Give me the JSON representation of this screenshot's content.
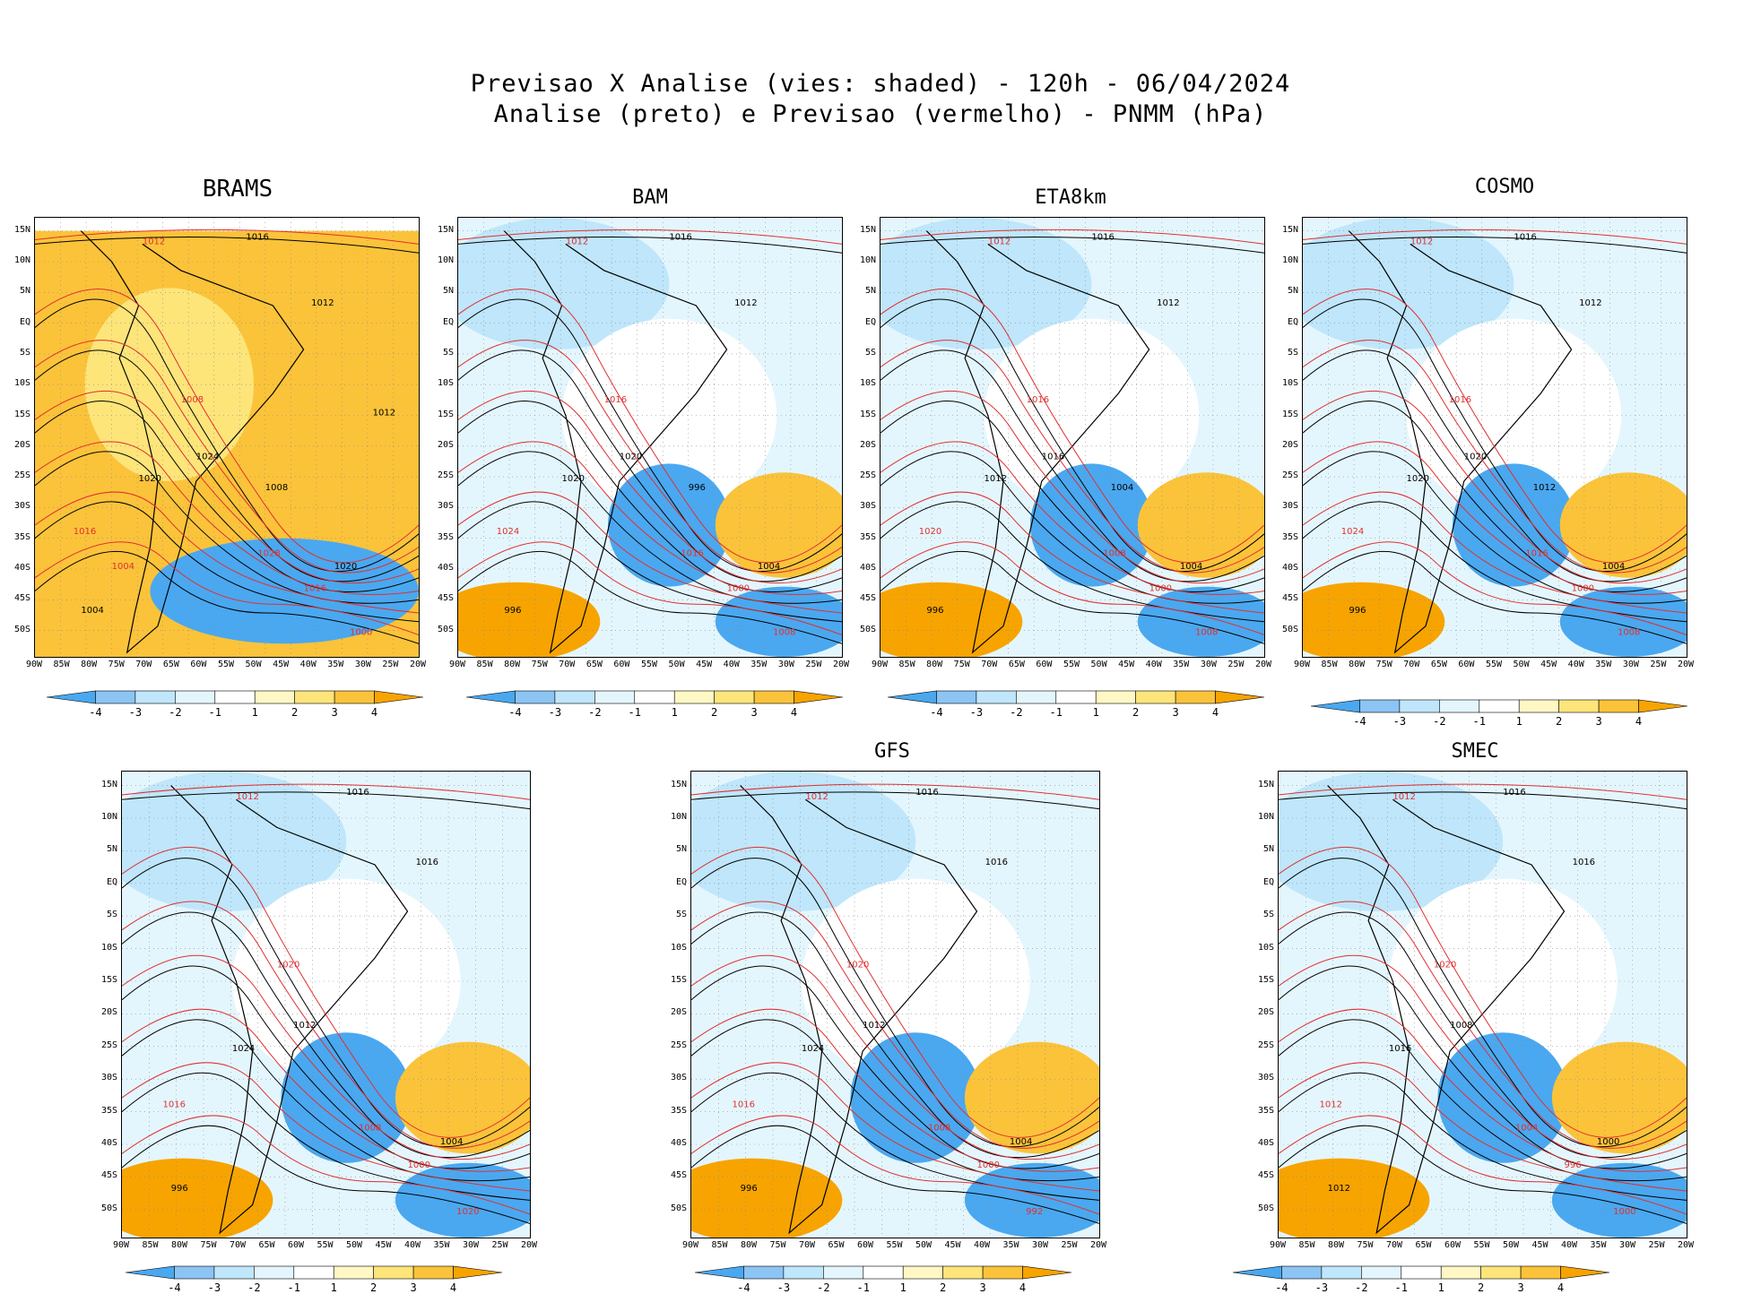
{
  "header": {
    "line1": "Previsao X Analise (vies: shaded) - 120h - 06/04/2024",
    "line2": "Analise (preto) e Previsao (vermelho) - PNMM (hPa)"
  },
  "lat_labels": [
    "15N",
    "10N",
    "5N",
    "EQ",
    "5S",
    "10S",
    "15S",
    "20S",
    "25S",
    "30S",
    "35S",
    "40S",
    "45S",
    "50S"
  ],
  "lon_labels": [
    "90W",
    "85W",
    "80W",
    "75W",
    "70W",
    "65W",
    "60W",
    "55W",
    "50W",
    "45W",
    "40W",
    "35W",
    "30W",
    "25W",
    "20W"
  ],
  "colorbar_labels": [
    "-4",
    "-3",
    "-2",
    "-1",
    "1",
    "2",
    "3",
    "4"
  ],
  "colors": {
    "neg4": "#4aa8f0",
    "neg3": "#8cc4f4",
    "neg2": "#bfe6fb",
    "neg1": "#e4f6fd",
    "zero": "#ffffff",
    "pos1": "#fff8c4",
    "pos2": "#fde57a",
    "pos3": "#fbc33a",
    "pos4": "#f7a400",
    "analysis": "#000000",
    "forecast": "#e03030"
  },
  "panels": [
    {
      "title": "BRAMS",
      "contour_labels": [
        "1016",
        "1012",
        "1012",
        "1008",
        "1020",
        "1016",
        "1024",
        "1028",
        "1020",
        "1016",
        "1004",
        "1000",
        "1008",
        "1004",
        "1012"
      ]
    },
    {
      "title": "BAM",
      "contour_labels": [
        "1016",
        "1012",
        "1012",
        "1016",
        "1020",
        "1024",
        "1020",
        "1016",
        "1004",
        "1000",
        "996",
        "1008",
        "996"
      ]
    },
    {
      "title": "ETA8km",
      "contour_labels": [
        "1016",
        "1012",
        "1012",
        "1016",
        "1012",
        "1020",
        "1016",
        "1008",
        "1004",
        "1000",
        "996",
        "1008",
        "1004"
      ]
    },
    {
      "title": "COSMO",
      "contour_labels": [
        "1016",
        "1012",
        "1012",
        "1016",
        "1020",
        "1024",
        "1020",
        "1016",
        "1004",
        "1000",
        "996",
        "1008",
        "1012"
      ]
    },
    {
      "title": "",
      "contour_labels": [
        "1016",
        "1012",
        "1016",
        "1020",
        "1024",
        "1016",
        "1012",
        "1008",
        "1004",
        "1000",
        "996",
        "1020"
      ]
    },
    {
      "title": "GFS",
      "contour_labels": [
        "1016",
        "1012",
        "1016",
        "1020",
        "1024",
        "1016",
        "1012",
        "1008",
        "1004",
        "1000",
        "996",
        "992"
      ]
    },
    {
      "title": "SMEC",
      "contour_labels": [
        "1016",
        "1012",
        "1016",
        "1020",
        "1016",
        "1012",
        "1008",
        "1004",
        "1000",
        "996",
        "1012",
        "1000"
      ]
    }
  ]
}
